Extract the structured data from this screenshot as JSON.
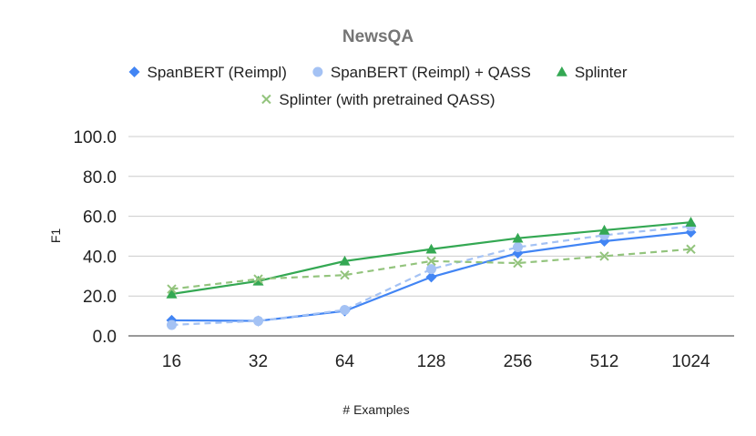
{
  "chart_data": {
    "type": "line",
    "title": "NewsQA",
    "xlabel": "# Examples",
    "ylabel": "F1",
    "categories": [
      "16",
      "32",
      "64",
      "128",
      "256",
      "512",
      "1024"
    ],
    "ylim": [
      0,
      100
    ],
    "yticks": [
      "0.0",
      "20.0",
      "40.0",
      "60.0",
      "80.0",
      "100.0"
    ],
    "grid": true,
    "legend_position": "top",
    "series": [
      {
        "name": "SpanBERT (Reimpl)",
        "values": [
          7.8,
          7.5,
          12.5,
          29.5,
          41.5,
          47.5,
          52.0
        ],
        "color": "#4285f4",
        "marker": "diamond",
        "dash": "solid"
      },
      {
        "name": "SpanBERT (Reimpl) + QASS",
        "values": [
          5.5,
          7.5,
          13.0,
          33.5,
          44.5,
          50.5,
          55.0
        ],
        "color": "#a4c2f4",
        "marker": "circle",
        "dash": "dashed"
      },
      {
        "name": "Splinter",
        "values": [
          21.0,
          27.5,
          37.5,
          43.5,
          49.0,
          53.0,
          57.0
        ],
        "color": "#34a853",
        "marker": "triangle",
        "dash": "solid"
      },
      {
        "name": "Splinter (with pretrained QASS)",
        "values": [
          23.5,
          28.5,
          30.5,
          37.5,
          36.5,
          40.0,
          43.5
        ],
        "color": "#93c47d",
        "marker": "x",
        "dash": "dashed"
      }
    ]
  }
}
